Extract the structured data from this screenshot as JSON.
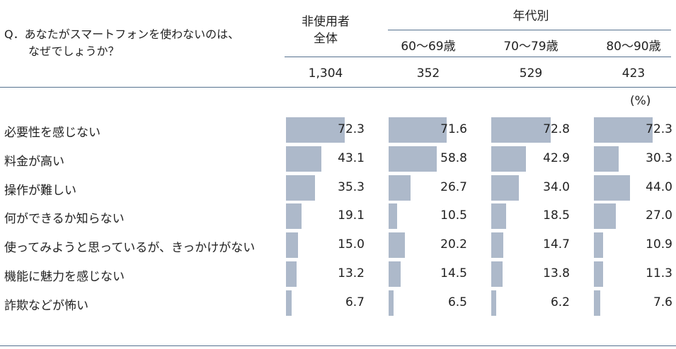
{
  "question": [
    "Q．あなたがスマートフォンを使わないのは、",
    "なぜでしょうか？"
  ],
  "header": {
    "overall_label": [
      "非使用者",
      "全体"
    ],
    "group_label": "年代別",
    "columns": [
      "60～69歳",
      "70～79歳",
      "80～90歳"
    ],
    "counts": [
      "1,304",
      "352",
      "529",
      "423"
    ]
  },
  "unit": "(%)",
  "chart_data": {
    "type": "bar",
    "orientation": "horizontal",
    "categories": [
      "必要性を感じない",
      "料金が高い",
      "操作が難しい",
      "何ができるか知らない",
      "使ってみようと思っているが、きっかけがない",
      "機能に魅力を感じない",
      "詐欺などが怖い"
    ],
    "series": [
      {
        "name": "非使用者 全体",
        "values": [
          72.3,
          43.1,
          35.3,
          19.1,
          15.0,
          13.2,
          6.7
        ]
      },
      {
        "name": "60～69歳",
        "values": [
          71.6,
          58.8,
          26.7,
          10.5,
          20.2,
          14.5,
          6.5
        ]
      },
      {
        "name": "70～79歳",
        "values": [
          72.8,
          42.9,
          34.0,
          18.5,
          14.7,
          13.8,
          6.2
        ]
      },
      {
        "name": "80～90歳",
        "values": [
          72.3,
          30.3,
          44.0,
          27.0,
          10.9,
          11.3,
          7.6
        ]
      }
    ],
    "value_labels": [
      [
        "72.3",
        "43.1",
        "35.3",
        "19.1",
        "15.0",
        "13.2",
        "6.7"
      ],
      [
        "71.6",
        "58.8",
        "26.7",
        "10.5",
        "20.2",
        "14.5",
        "6.5"
      ],
      [
        "72.8",
        "42.9",
        "34.0",
        "18.5",
        "14.7",
        "13.8",
        "6.2"
      ],
      [
        "72.3",
        "30.3",
        "44.0",
        "27.0",
        "10.9",
        "11.3",
        "7.6"
      ]
    ],
    "xlim": [
      0,
      100
    ],
    "bar_color": "#adb9ca",
    "rule_color": "#55718f"
  }
}
